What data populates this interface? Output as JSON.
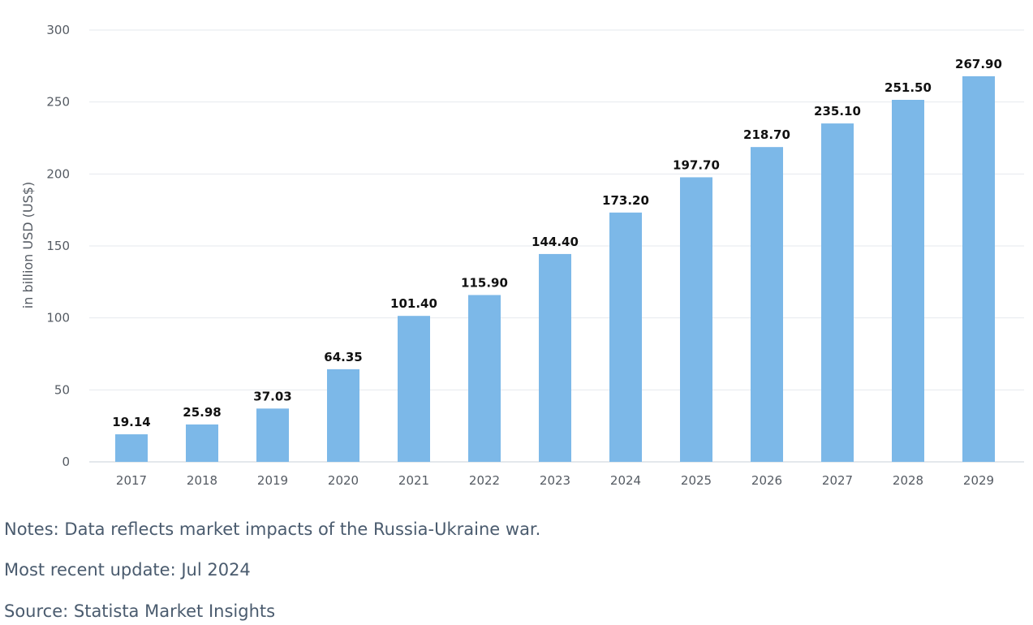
{
  "chart_data": {
    "type": "bar",
    "categories": [
      "2017",
      "2018",
      "2019",
      "2020",
      "2021",
      "2022",
      "2023",
      "2024",
      "2025",
      "2026",
      "2027",
      "2028",
      "2029"
    ],
    "values": [
      19.14,
      25.98,
      37.03,
      64.35,
      101.4,
      115.9,
      144.4,
      173.2,
      197.7,
      218.7,
      235.1,
      251.5,
      267.9
    ],
    "value_labels": [
      "19.14",
      "25.98",
      "37.03",
      "64.35",
      "101.40",
      "115.90",
      "144.40",
      "173.20",
      "197.70",
      "218.70",
      "235.10",
      "251.50",
      "267.90"
    ],
    "ylabel": "in billion USD (US$)",
    "xlabel": "",
    "title": "",
    "ylim": [
      0,
      300
    ],
    "yticks": [
      "0",
      "50",
      "100",
      "150",
      "200",
      "250",
      "300"
    ],
    "grid": true,
    "bar_color": "#7cb8e8"
  },
  "notes": {
    "note": "Notes: Data reflects market impacts of the Russia-Ukraine war.",
    "update": "Most recent update: Jul 2024",
    "source": "Source: Statista Market Insights"
  }
}
